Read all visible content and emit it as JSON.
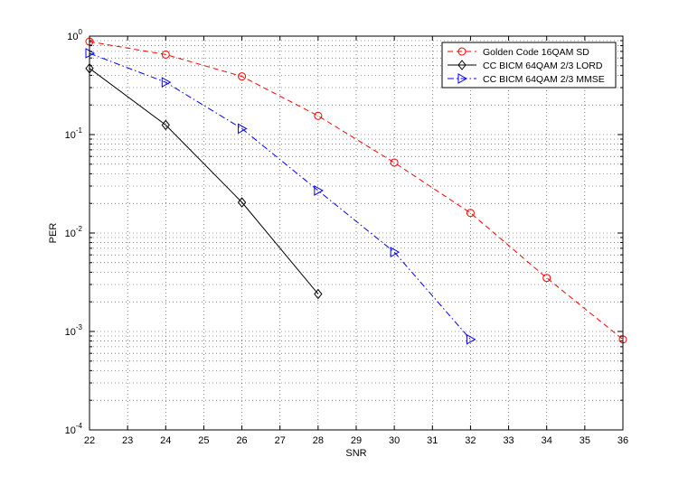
{
  "chart_data": {
    "type": "line",
    "title": "",
    "xlabel": "SNR",
    "ylabel": "PER",
    "xlim": [
      22,
      36
    ],
    "ylim": [
      0.0001,
      1
    ],
    "yscale": "log",
    "x_ticks": [
      "22",
      "23",
      "24",
      "25",
      "26",
      "27",
      "28",
      "29",
      "30",
      "31",
      "32",
      "33",
      "34",
      "35",
      "36"
    ],
    "y_ticks": [
      {
        "base": "10",
        "exp": "-4"
      },
      {
        "base": "10",
        "exp": "-3"
      },
      {
        "base": "10",
        "exp": "-2"
      },
      {
        "base": "10",
        "exp": "-1"
      },
      {
        "base": "10",
        "exp": "0"
      }
    ],
    "grid": true,
    "legend_position": "top-right",
    "series": [
      {
        "name": "Golden Code 16QAM SD",
        "color": "#ff0000",
        "line_style": "dashed",
        "marker": "circle",
        "points": [
          [
            22,
            0.88
          ],
          [
            24,
            0.65
          ],
          [
            26,
            0.39
          ],
          [
            28,
            0.155
          ],
          [
            30,
            0.052
          ],
          [
            32,
            0.016
          ],
          [
            34,
            0.0035
          ],
          [
            36,
            0.00083
          ]
        ]
      },
      {
        "name": "CC BICM 64QAM 2/3 LORD",
        "color": "#000000",
        "line_style": "solid",
        "marker": "diamond",
        "points": [
          [
            22,
            0.47
          ],
          [
            24,
            0.125
          ],
          [
            26,
            0.0205
          ],
          [
            28,
            0.0024
          ]
        ]
      },
      {
        "name": "CC BICM 64QAM 2/3 MMSE",
        "color": "#0000ff",
        "line_style": "dashdot",
        "marker": "triangle-right",
        "points": [
          [
            22,
            0.67
          ],
          [
            24,
            0.34
          ],
          [
            26,
            0.115
          ],
          [
            28,
            0.027
          ],
          [
            30,
            0.0064
          ],
          [
            32,
            0.00083
          ]
        ]
      }
    ]
  }
}
